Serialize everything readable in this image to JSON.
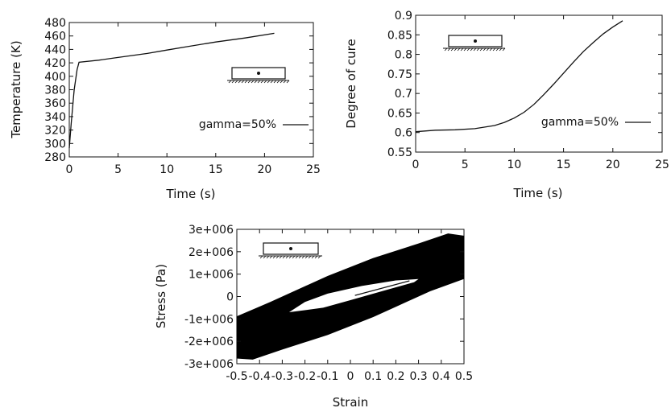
{
  "chart_data": [
    {
      "id": "temperature",
      "type": "line",
      "xlabel": "Time (s)",
      "ylabel": "Temperature (K)",
      "xlim": [
        0,
        25
      ],
      "ylim": [
        280,
        480
      ],
      "xticks": [
        0,
        5,
        10,
        15,
        20,
        25
      ],
      "yticks": [
        280,
        300,
        320,
        340,
        360,
        380,
        400,
        420,
        440,
        460,
        480
      ],
      "legend_position": "right",
      "grid": false,
      "series": [
        {
          "name": "gamma=50%",
          "x": [
            0,
            0.2,
            0.5,
            0.8,
            1,
            3,
            5,
            8,
            10,
            12,
            15,
            18,
            21
          ],
          "y": [
            293,
            330,
            380,
            410,
            421,
            424,
            428,
            434,
            439,
            444,
            451,
            457,
            464
          ]
        }
      ]
    },
    {
      "id": "cure",
      "type": "line",
      "xlabel": "Time (s)",
      "ylabel": "Degree of cure",
      "xlim": [
        0,
        25
      ],
      "ylim": [
        0.55,
        0.9
      ],
      "xticks": [
        0,
        5,
        10,
        15,
        20,
        25
      ],
      "yticks": [
        0.55,
        0.6,
        0.65,
        0.7,
        0.75,
        0.8,
        0.85,
        0.9
      ],
      "legend_position": "right",
      "grid": false,
      "series": [
        {
          "name": "gamma=50%",
          "x": [
            0,
            2,
            4,
            6,
            8,
            9,
            10,
            11,
            12,
            13,
            14,
            15,
            16,
            17,
            18,
            19,
            20,
            21
          ],
          "y": [
            0.602,
            0.606,
            0.607,
            0.61,
            0.618,
            0.626,
            0.637,
            0.652,
            0.672,
            0.697,
            0.724,
            0.752,
            0.78,
            0.807,
            0.83,
            0.852,
            0.87,
            0.886
          ]
        }
      ]
    },
    {
      "id": "stress",
      "type": "line",
      "xlabel": "Strain",
      "ylabel": "Stress (Pa)",
      "xlim": [
        -0.5,
        0.5
      ],
      "ylim": [
        -3000000,
        3000000
      ],
      "xticks": [
        -0.5,
        -0.4,
        -0.3,
        -0.2,
        -0.1,
        0,
        0.1,
        0.2,
        0.3,
        0.4,
        0.5
      ],
      "xtick_labels": [
        "-0.5",
        "-0.4",
        "-0.3",
        "-0.2",
        "-0.1",
        "0",
        "0.1",
        "0.2",
        "0.3",
        "0.4",
        "0.5"
      ],
      "yticks": [
        -3000000,
        -2000000,
        -1000000,
        0,
        1000000,
        2000000,
        3000000
      ],
      "ytick_labels": [
        "-3e+006",
        "-2e+006",
        "-1e+006",
        "0",
        "1e+006",
        "2e+006",
        "3e+006"
      ],
      "grid": false,
      "hysteresis": {
        "outer": [
          [
            -0.5,
            -900000
          ],
          [
            -0.35,
            -250000
          ],
          [
            -0.1,
            900000
          ],
          [
            0.1,
            1700000
          ],
          [
            0.3,
            2350000
          ],
          [
            0.43,
            2800000
          ],
          [
            0.5,
            2700000
          ],
          [
            0.5,
            800000
          ],
          [
            0.35,
            250000
          ],
          [
            0.1,
            -900000
          ],
          [
            -0.1,
            -1700000
          ],
          [
            -0.3,
            -2350000
          ],
          [
            -0.43,
            -2800000
          ],
          [
            -0.5,
            -2750000
          ]
        ],
        "inner": [
          [
            -0.27,
            -700000
          ],
          [
            -0.2,
            -240000
          ],
          [
            -0.1,
            130000
          ],
          [
            0.05,
            470000
          ],
          [
            0.2,
            720000
          ],
          [
            0.3,
            780000
          ],
          [
            0.28,
            640000
          ],
          [
            0.15,
            270000
          ],
          [
            0,
            -160000
          ],
          [
            -0.12,
            -500000
          ]
        ],
        "center_line": {
          "x": [
            0.02,
            0.26
          ],
          "y": [
            50000,
            700000
          ]
        }
      }
    }
  ]
}
